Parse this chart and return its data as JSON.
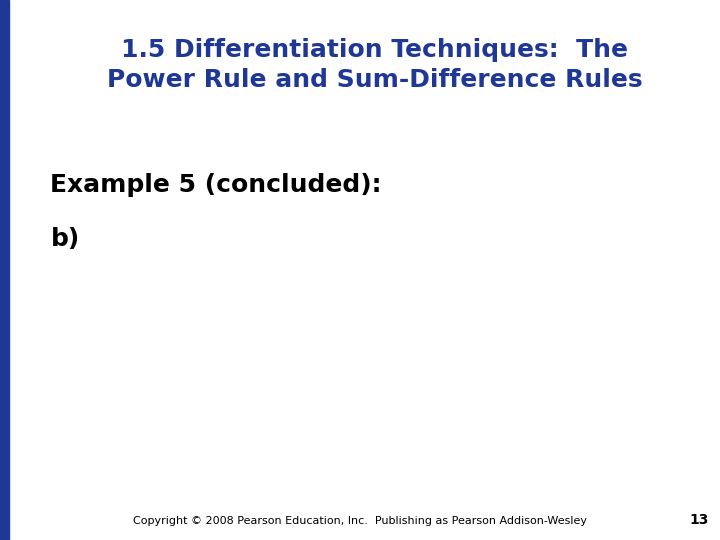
{
  "title_line1": "1.5 Differentiation Techniques:  The",
  "title_line2": "Power Rule and Sum-Difference Rules",
  "title_color": "#1F3896",
  "body_line1": "Example 5 (concluded):",
  "body_line2": "b)",
  "body_color": "#000000",
  "footer_text": "Copyright © 2008 Pearson Education, Inc.  Publishing as Pearson Addison-Wesley",
  "footer_page": "13",
  "footer_color": "#000000",
  "background_color": "#FFFFFF",
  "title_fontsize": 18,
  "body_fontsize": 18,
  "footer_fontsize": 8,
  "left_bar_color": "#1F3896",
  "left_bar_width": 0.012
}
